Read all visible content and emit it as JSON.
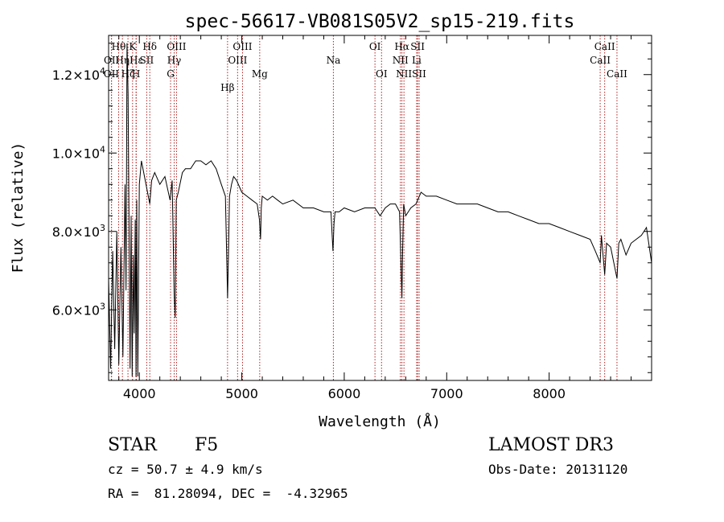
{
  "chart_data": {
    "type": "line",
    "title": "spec-56617-VB081S05V2_sp15-219.fits",
    "xlabel": "Wavelength (Å)",
    "ylabel": "Flux (relative)",
    "xlim": [
      3700,
      9000
    ],
    "ylim": [
      4200,
      13000
    ],
    "x_ticks": [
      {
        "value": 4000,
        "label": "4000"
      },
      {
        "value": 5000,
        "label": "5000"
      },
      {
        "value": 6000,
        "label": "6000"
      },
      {
        "value": 7000,
        "label": "7000"
      },
      {
        "value": 8000,
        "label": "8000"
      }
    ],
    "y_ticks": [
      {
        "value": 6000,
        "mant": "6.0",
        "exp": "3"
      },
      {
        "value": 8000,
        "mant": "8.0",
        "exp": "3"
      },
      {
        "value": 10000,
        "mant": "1.0",
        "exp": "4"
      },
      {
        "value": 12000,
        "mant": "1.2",
        "exp": "4"
      }
    ],
    "grid": false,
    "line_color": "#000000",
    "marker_color": "#b22222",
    "series": [
      {
        "x": [
          3700,
          3720,
          3740,
          3760,
          3780,
          3800,
          3820,
          3840,
          3860,
          3870,
          3880,
          3890,
          3900,
          3910,
          3920,
          3930,
          3940,
          3950,
          3960,
          3968,
          3975,
          3985,
          4000,
          4020,
          4050,
          4080,
          4102,
          4120,
          4150,
          4200,
          4250,
          4300,
          4320,
          4340,
          4350,
          4360,
          4380,
          4420,
          4450,
          4500,
          4550,
          4600,
          4650,
          4700,
          4750,
          4800,
          4840,
          4861,
          4870,
          4880,
          4900,
          4920,
          4950,
          5000,
          5050,
          5100,
          5150,
          5172,
          5183,
          5190,
          5200,
          5250,
          5300,
          5350,
          5400,
          5500,
          5600,
          5700,
          5800,
          5870,
          5890,
          5900,
          5910,
          5950,
          6000,
          6100,
          6200,
          6300,
          6350,
          6400,
          6450,
          6500,
          6540,
          6563,
          6570,
          6580,
          6600,
          6650,
          6700,
          6750,
          6800,
          6900,
          7000,
          7100,
          7200,
          7300,
          7400,
          7500,
          7600,
          7700,
          7800,
          7900,
          8000,
          8100,
          8200,
          8300,
          8400,
          8450,
          8498,
          8510,
          8542,
          8560,
          8600,
          8662,
          8680,
          8700,
          8750,
          8800,
          8850,
          8900,
          8950,
          9000
        ],
        "y": [
          6800,
          4500,
          7500,
          5000,
          8000,
          4600,
          7600,
          4800,
          9200,
          6500,
          12800,
          11500,
          8000,
          4500,
          8400,
          4300,
          7400,
          5400,
          8300,
          4300,
          8800,
          4300,
          9200,
          9800,
          9400,
          9000,
          8700,
          9300,
          9500,
          9200,
          9400,
          8800,
          9300,
          6400,
          5800,
          8800,
          9000,
          9500,
          9600,
          9600,
          9800,
          9800,
          9700,
          9800,
          9600,
          9200,
          8900,
          6300,
          7400,
          8900,
          9200,
          9400,
          9300,
          9000,
          8900,
          8800,
          8700,
          8300,
          7800,
          8600,
          8900,
          8800,
          8900,
          8800,
          8700,
          8800,
          8600,
          8600,
          8500,
          8500,
          7500,
          8200,
          8500,
          8500,
          8600,
          8500,
          8600,
          8600,
          8400,
          8600,
          8700,
          8700,
          8500,
          6300,
          7500,
          8700,
          8400,
          8600,
          8700,
          9000,
          8900,
          8900,
          8800,
          8700,
          8700,
          8700,
          8600,
          8500,
          8500,
          8400,
          8300,
          8200,
          8200,
          8100,
          8000,
          7900,
          7800,
          7500,
          7200,
          7900,
          6900,
          7700,
          7600,
          6800,
          7700,
          7800,
          7400,
          7700,
          7800,
          7900,
          8100,
          7200
        ]
      }
    ],
    "lines": [
      {
        "label": "Hβ",
        "x": 4861,
        "row": 3
      },
      {
        "label": "OII",
        "x": 3727,
        "row": 2
      },
      {
        "label": "OII",
        "x": 3729,
        "row": 1
      },
      {
        "label": "Hθ",
        "x": 3798,
        "row": 0
      },
      {
        "label": "Hη",
        "x": 3835,
        "row": 1
      },
      {
        "label": "Hζ",
        "x": 3889,
        "row": 2
      },
      {
        "label": "K",
        "x": 3934,
        "row": 0
      },
      {
        "label": "H",
        "x": 3968,
        "row": 2
      },
      {
        "label": "Hε",
        "x": 3970,
        "row": 1
      },
      {
        "label": "SII",
        "x": 4072,
        "row": 1
      },
      {
        "label": "Hδ",
        "x": 4102,
        "row": 0
      },
      {
        "label": "G",
        "x": 4305,
        "row": 2
      },
      {
        "label": "Hγ",
        "x": 4340,
        "row": 1
      },
      {
        "label": "OIII",
        "x": 4363,
        "row": 0
      },
      {
        "label": "OIII",
        "x": 4959,
        "row": 1
      },
      {
        "label": "OIII",
        "x": 5007,
        "row": 0
      },
      {
        "label": "Mg",
        "x": 5175,
        "row": 2
      },
      {
        "label": "Na",
        "x": 5894,
        "row": 1
      },
      {
        "label": "OI",
        "x": 6300,
        "row": 0
      },
      {
        "label": "OI",
        "x": 6364,
        "row": 2
      },
      {
        "label": "NII",
        "x": 6548,
        "row": 1
      },
      {
        "label": "Hα",
        "x": 6563,
        "row": 0
      },
      {
        "label": "NII",
        "x": 6583,
        "row": 2
      },
      {
        "label": "Li",
        "x": 6707,
        "row": 1
      },
      {
        "label": "SII",
        "x": 6716,
        "row": 0
      },
      {
        "label": "SII",
        "x": 6731,
        "row": 2
      },
      {
        "label": "CaII",
        "x": 8498,
        "row": 1
      },
      {
        "label": "CaII",
        "x": 8542,
        "row": 0
      },
      {
        "label": "CaII",
        "x": 8662,
        "row": 2
      }
    ]
  },
  "info": {
    "class": "STAR",
    "subclass": "F5",
    "cz": "cz = 50.7 ± 4.9 km/s",
    "radec": "RA =  81.28094, DEC =  -4.32965",
    "survey": "LAMOST DR3",
    "obsdate": "Obs-Date: 20131120"
  }
}
